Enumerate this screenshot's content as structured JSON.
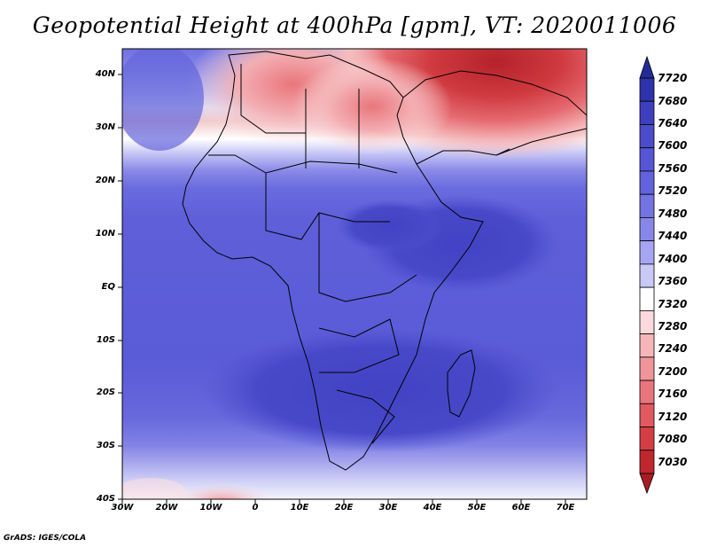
{
  "title": "Geopotential Height at 400hPa [gpm], VT: 2020011006",
  "footer": "GrADS: IGES/COLA",
  "lat_labels": [
    "40N",
    "30N",
    "20N",
    "10N",
    "EQ",
    "10S",
    "20S",
    "30S",
    "40S"
  ],
  "lon_labels": [
    "30W",
    "20W",
    "10W",
    "0",
    "10E",
    "20E",
    "30E",
    "40E",
    "50E",
    "60E",
    "70E"
  ],
  "colorbar": {
    "labels": [
      "7720",
      "7680",
      "7640",
      "7600",
      "7560",
      "7520",
      "7480",
      "7440",
      "7400",
      "7360",
      "7320",
      "7280",
      "7240",
      "7200",
      "7160",
      "7120",
      "7080",
      "7030"
    ],
    "colors": [
      "#232c96",
      "#2e32ab",
      "#3e3fbf",
      "#4b4ccc",
      "#5555d6",
      "#6162dc",
      "#7373e2",
      "#8787ea",
      "#a5a5f1",
      "#c9c9f7",
      "#ffffff",
      "#fadadd",
      "#f6b5b8",
      "#f0959a",
      "#ea757c",
      "#e15a60",
      "#d43e44",
      "#c0272d",
      "#a71d23"
    ]
  },
  "map": {
    "lon_range": [
      -30,
      75
    ],
    "lat_range": [
      -40,
      45
    ],
    "field": "geopotential height 400hPa"
  }
}
